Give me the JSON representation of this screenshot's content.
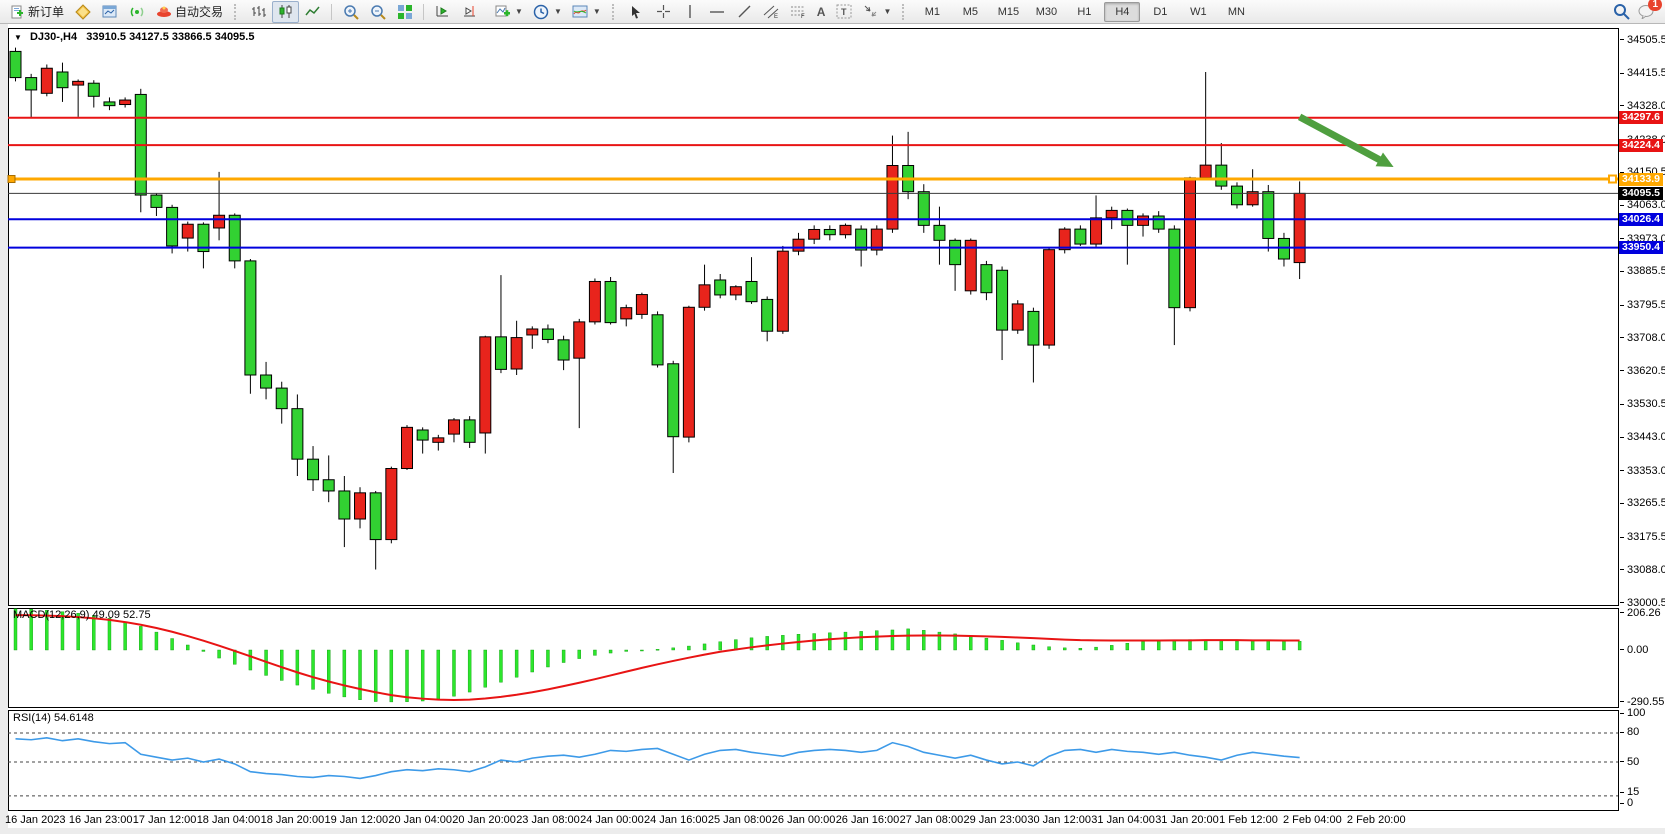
{
  "toolbar": {
    "new_order_label": "新订单",
    "autotrading_label": "自动交易",
    "timeframes": [
      "M1",
      "M5",
      "M15",
      "M30",
      "H1",
      "H4",
      "D1",
      "W1",
      "MN"
    ],
    "active_timeframe": "H4",
    "notification_badge": "1"
  },
  "chart": {
    "title": {
      "symbol_period": "DJ30-,H4",
      "ohlc": "33910.5 34127.5 33866.5 34095.5"
    },
    "colors": {
      "bull": "#e8241c",
      "bear": "#32d132",
      "outline": "#000000",
      "red_line": "#e81414",
      "blue_line": "#0000dd",
      "orange_line": "#ffa800",
      "bid_line": "#3a3a3a",
      "bid_label_bg": "#000000",
      "macd_bar": "#2ce62c",
      "macd_signal": "#e81414",
      "rsi_line": "#3d9ae8",
      "arrow": "#4f9f3f"
    },
    "price_axis_ticks": [
      "34505.5",
      "34415.5",
      "34328.0",
      "34238.0",
      "34150.5",
      "34063.0",
      "33973.0",
      "33885.5",
      "33795.5",
      "33708.0",
      "33620.5",
      "33530.5",
      "33443.0",
      "33353.0",
      "33265.5",
      "33175.5",
      "33088.0",
      "33000.5"
    ],
    "price_lines": [
      {
        "value": 34297.6,
        "label": "34297.6",
        "color": "#e81414",
        "bg": "#e81414",
        "width": 2,
        "handles": false
      },
      {
        "value": 34224.4,
        "label": "34224.4",
        "color": "#e81414",
        "bg": "#e81414",
        "width": 2,
        "handles": false
      },
      {
        "value": 34133.9,
        "label": "34133.9",
        "color": "#ffa800",
        "bg": "#ffa800",
        "width": 3,
        "handles": true
      },
      {
        "value": 34095.5,
        "label": "34095.5",
        "color": "#3a3a3a",
        "bg": "#000000",
        "width": 1,
        "handles": false
      },
      {
        "value": 34026.4,
        "label": "34026.4",
        "color": "#0000dd",
        "bg": "#0000dd",
        "width": 2,
        "handles": false
      },
      {
        "value": 33950.4,
        "label": "33950.4",
        "color": "#0000dd",
        "bg": "#0000dd",
        "width": 2,
        "handles": false
      }
    ],
    "annotation_arrow": {
      "from_bar": 82,
      "from_price": 34300,
      "to_bar": 88,
      "to_price": 34166
    }
  },
  "macd": {
    "label": "MACD(12,26,9) 49.09 52.75",
    "axis_ticks": [
      "206.26",
      "0.00",
      "-290.55"
    ],
    "axis_tick_values": [
      206.26,
      0.0,
      -290.55
    ]
  },
  "rsi": {
    "label": "RSI(14) 54.6148",
    "axis_ticks": [
      "100",
      "80",
      "50",
      "15",
      "0"
    ],
    "axis_tick_values": [
      100,
      80,
      50,
      15,
      0
    ],
    "dashed_levels": [
      80,
      50,
      15
    ]
  },
  "time_axis": {
    "labels": [
      "16 Jan 2023",
      "16 Jan 23:00",
      "17 Jan 12:00",
      "18 Jan 04:00",
      "18 Jan 20:00",
      "19 Jan 12:00",
      "20 Jan 04:00",
      "20 Jan 20:00",
      "23 Jan 08:00",
      "24 Jan 00:00",
      "24 Jan 16:00",
      "25 Jan 08:00",
      "26 Jan 00:00",
      "26 Jan 16:00",
      "27 Jan 08:00",
      "29 Jan 23:00",
      "30 Jan 12:00",
      "31 Jan 04:00",
      "31 Jan 20:00",
      "1 Feb 12:00",
      "2 Feb 04:00",
      "2 Feb 20:00"
    ]
  },
  "chart_data": [
    {
      "type": "candlestick",
      "symbol": "DJ30-",
      "period": "H4",
      "ylim": [
        33000.5,
        34505.5
      ],
      "last_bar_ohlc": [
        33910.5,
        34127.5,
        33866.5,
        34095.5
      ],
      "up_color_meaning": "red = bullish, green = bearish (CN convention)",
      "candles": [
        [
          34475,
          34485,
          34395,
          34405
        ],
        [
          34405,
          34415,
          34297,
          34372
        ],
        [
          34363,
          34440,
          34355,
          34430
        ],
        [
          34420,
          34445,
          34340,
          34378
        ],
        [
          34385,
          34400,
          34300,
          34395
        ],
        [
          34390,
          34398,
          34325,
          34355
        ],
        [
          34340,
          34352,
          34318,
          34330
        ],
        [
          34333,
          34352,
          34325,
          34345
        ],
        [
          34360,
          34375,
          34045,
          34091
        ],
        [
          34091,
          34096,
          34035,
          34058
        ],
        [
          34058,
          34065,
          33935,
          33955
        ],
        [
          33976,
          34020,
          33940,
          34013
        ],
        [
          34013,
          34018,
          33895,
          33940
        ],
        [
          34003,
          34153,
          33970,
          34037
        ],
        [
          34037,
          34042,
          33895,
          33915
        ],
        [
          33915,
          33920,
          33560,
          33610
        ],
        [
          33610,
          33645,
          33545,
          33575
        ],
        [
          33575,
          33592,
          33480,
          33520
        ],
        [
          33520,
          33558,
          33340,
          33385
        ],
        [
          33385,
          33420,
          33300,
          33330
        ],
        [
          33330,
          33395,
          33270,
          33300
        ],
        [
          33300,
          33340,
          33150,
          33225
        ],
        [
          33225,
          33310,
          33200,
          33295
        ],
        [
          33295,
          33300,
          33090,
          33170
        ],
        [
          33170,
          33365,
          33160,
          33360
        ],
        [
          33360,
          33476,
          33356,
          33470
        ],
        [
          33463,
          33470,
          33400,
          33436
        ],
        [
          33430,
          33450,
          33408,
          33442
        ],
        [
          33452,
          33495,
          33430,
          33490
        ],
        [
          33490,
          33500,
          33415,
          33430
        ],
        [
          33455,
          33715,
          33400,
          33712
        ],
        [
          33712,
          33877,
          33615,
          33625
        ],
        [
          33626,
          33755,
          33610,
          33710
        ],
        [
          33717,
          33740,
          33680,
          33733
        ],
        [
          33733,
          33745,
          33695,
          33705
        ],
        [
          33704,
          33715,
          33623,
          33650
        ],
        [
          33655,
          33760,
          33468,
          33752
        ],
        [
          33752,
          33868,
          33745,
          33860
        ],
        [
          33860,
          33872,
          33745,
          33750
        ],
        [
          33760,
          33798,
          33740,
          33790
        ],
        [
          33772,
          33830,
          33760,
          33825
        ],
        [
          33771,
          33780,
          33630,
          33637
        ],
        [
          33640,
          33648,
          33348,
          33445
        ],
        [
          33444,
          33795,
          33430,
          33791
        ],
        [
          33791,
          33905,
          33782,
          33851
        ],
        [
          33864,
          33880,
          33815,
          33824
        ],
        [
          33824,
          33850,
          33810,
          33846
        ],
        [
          33860,
          33925,
          33800,
          33806
        ],
        [
          33812,
          33820,
          33700,
          33727
        ],
        [
          33727,
          33955,
          33720,
          33941
        ],
        [
          33941,
          33990,
          33930,
          33973
        ],
        [
          33973,
          34010,
          33960,
          33999
        ],
        [
          33999,
          34010,
          33970,
          33985
        ],
        [
          33985,
          34015,
          33975,
          34010
        ],
        [
          34000,
          34010,
          33900,
          33944
        ],
        [
          33944,
          34010,
          33930,
          34000
        ],
        [
          34000,
          34250,
          33990,
          34170
        ],
        [
          34170,
          34260,
          34080,
          34100
        ],
        [
          34100,
          34120,
          33990,
          34010
        ],
        [
          34010,
          34060,
          33905,
          33970
        ],
        [
          33970,
          33975,
          33835,
          33905
        ],
        [
          33835,
          33975,
          33825,
          33970
        ],
        [
          33905,
          33915,
          33810,
          33830
        ],
        [
          33890,
          33900,
          33650,
          33730
        ],
        [
          33730,
          33810,
          33720,
          33800
        ],
        [
          33780,
          33790,
          33590,
          33690
        ],
        [
          33690,
          33950,
          33680,
          33945
        ],
        [
          33945,
          34005,
          33935,
          34000
        ],
        [
          34000,
          34010,
          33955,
          33960
        ],
        [
          33960,
          34090,
          33950,
          34030
        ],
        [
          34030,
          34060,
          34000,
          34050
        ],
        [
          34050,
          34055,
          33905,
          34010
        ],
        [
          34010,
          34042,
          33980,
          34035
        ],
        [
          34035,
          34048,
          33990,
          34000
        ],
        [
          34000,
          34010,
          33690,
          33790
        ],
        [
          33790,
          34140,
          33780,
          34137
        ],
        [
          34137,
          34420,
          34130,
          34171
        ],
        [
          34171,
          34230,
          34105,
          34115
        ],
        [
          34115,
          34125,
          34055,
          34065
        ],
        [
          34065,
          34160,
          34060,
          34100
        ],
        [
          34100,
          34118,
          33940,
          33975
        ],
        [
          33975,
          33990,
          33900,
          33920
        ],
        [
          33910.5,
          34127.5,
          33866.5,
          34095.5
        ]
      ]
    },
    {
      "type": "bar",
      "name": "MACD(12,26,9) histogram",
      "ylim": [
        -310,
        240
      ],
      "values": [
        230,
        228,
        222,
        214,
        205,
        193,
        178,
        158,
        132,
        100,
        64,
        28,
        -8,
        -45,
        -80,
        -112,
        -142,
        -170,
        -196,
        -220,
        -242,
        -262,
        -278,
        -288,
        -290,
        -289,
        -285,
        -276,
        -258,
        -235,
        -208,
        -180,
        -152,
        -123,
        -95,
        -70,
        -48,
        -30,
        -17,
        -8,
        -2,
        4,
        12,
        22,
        34,
        46,
        58,
        68,
        76,
        82,
        88,
        92,
        96,
        100,
        104,
        108,
        112,
        118,
        110,
        100,
        90,
        78,
        66,
        54,
        40,
        28,
        18,
        12,
        10,
        16,
        26,
        38,
        48,
        52,
        55,
        58,
        56,
        52,
        50,
        51,
        52,
        50,
        49.09
      ],
      "signal": [
        195,
        194,
        192,
        189,
        184,
        177,
        168,
        156,
        141,
        123,
        102,
        78,
        52,
        24,
        -5,
        -35,
        -66,
        -96,
        -125,
        -152,
        -176,
        -198,
        -218,
        -236,
        -252,
        -264,
        -272,
        -277,
        -279,
        -277,
        -271,
        -262,
        -250,
        -236,
        -220,
        -202,
        -183,
        -163,
        -142,
        -121,
        -100,
        -80,
        -61,
        -43,
        -26,
        -10,
        3,
        15,
        26,
        36,
        45,
        53,
        60,
        66,
        71,
        75,
        78,
        80,
        81,
        81,
        80,
        78,
        76,
        73,
        70,
        66,
        62,
        58,
        55,
        54,
        53,
        53,
        53,
        53,
        54,
        54,
        55,
        55,
        55,
        54,
        54,
        53,
        52.75
      ]
    },
    {
      "type": "line",
      "name": "RSI(14)",
      "ylim": [
        0,
        100
      ],
      "values": [
        74,
        73,
        75,
        72,
        74,
        71,
        69,
        70,
        58,
        55,
        52,
        54,
        50,
        53,
        48,
        40,
        38,
        37,
        35,
        34,
        36,
        35,
        33,
        36,
        40,
        42,
        41,
        43,
        42,
        40,
        45,
        52,
        50,
        54,
        56,
        57,
        55,
        58,
        62,
        61,
        63,
        64,
        58,
        52,
        58,
        62,
        63,
        60,
        58,
        56,
        60,
        62,
        63,
        62,
        60,
        62,
        70,
        66,
        60,
        57,
        54,
        57,
        52,
        48,
        50,
        46,
        56,
        62,
        63,
        60,
        63,
        61,
        60,
        58,
        60,
        57,
        55,
        52,
        57,
        60,
        58,
        56,
        54.61
      ]
    }
  ]
}
